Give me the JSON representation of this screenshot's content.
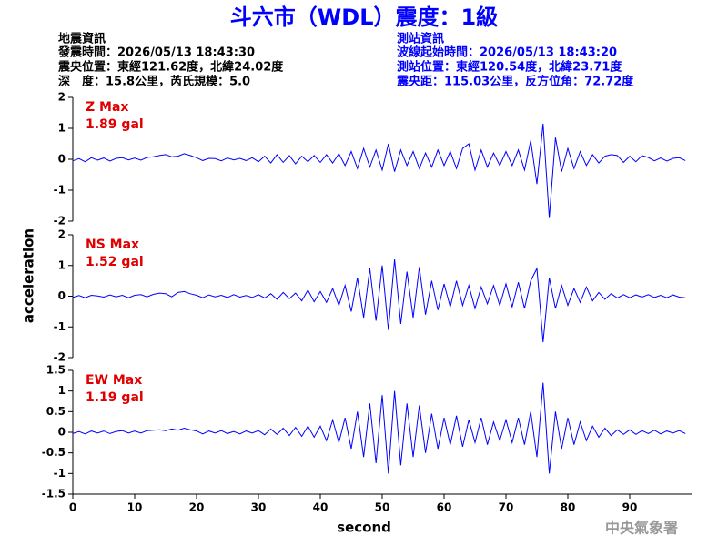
{
  "header": {
    "title": "斗六市（WDL）震度：1級",
    "left": [
      "地震資訊",
      "發震時間：2026/05/13 18:43:30",
      "震央位置：東經121.62度，北緯24.02度",
      "深　度：15.8公里，芮氏規模：5.0"
    ],
    "right": [
      "測站資訊",
      "波線起始時間：2026/05/13 18:43:20",
      "測站位置：東經120.54度，北緯23.71度",
      "震央距：115.03公里，反方位角：72.72度"
    ],
    "watermark": "中央氣象署",
    "y_label": "acceleration",
    "x_label": "second"
  },
  "chart_data": [
    {
      "type": "line",
      "label": "Z Max",
      "max_label": "1.89 gal",
      "color": "#0000ff",
      "xlim": [
        0,
        100
      ],
      "ylim": [
        -2,
        2
      ],
      "yticks": [
        -2,
        -1,
        0,
        1,
        2
      ],
      "x": [
        0,
        1,
        2,
        3,
        4,
        5,
        6,
        7,
        8,
        9,
        10,
        11,
        12,
        13,
        14,
        15,
        16,
        17,
        18,
        19,
        20,
        21,
        22,
        23,
        24,
        25,
        26,
        27,
        28,
        29,
        30,
        31,
        32,
        33,
        34,
        35,
        36,
        37,
        38,
        39,
        40,
        41,
        42,
        43,
        44,
        45,
        46,
        47,
        48,
        49,
        50,
        51,
        52,
        53,
        54,
        55,
        56,
        57,
        58,
        59,
        60,
        61,
        62,
        63,
        64,
        65,
        66,
        67,
        68,
        69,
        70,
        71,
        72,
        73,
        74,
        75,
        76,
        77,
        78,
        79,
        80,
        81,
        82,
        83,
        84,
        85,
        86,
        87,
        88,
        89,
        90,
        91,
        92,
        93,
        94,
        95,
        96,
        97,
        98,
        99
      ],
      "values": [
        -0.05,
        0.02,
        -0.08,
        0.05,
        -0.03,
        0.04,
        -0.06,
        0.03,
        0.05,
        -0.02,
        0.04,
        -0.03,
        0.06,
        0.08,
        0.12,
        0.15,
        0.08,
        0.1,
        0.18,
        0.12,
        0.05,
        -0.04,
        0.03,
        0.02,
        -0.05,
        0.04,
        -0.02,
        0.03,
        -0.04,
        0.05,
        -0.08,
        0.1,
        -0.12,
        0.15,
        -0.1,
        0.12,
        -0.15,
        0.1,
        -0.08,
        0.12,
        -0.1,
        0.15,
        -0.12,
        0.18,
        -0.2,
        0.25,
        -0.3,
        0.35,
        -0.25,
        0.3,
        -0.35,
        0.5,
        -0.4,
        0.3,
        -0.2,
        0.25,
        -0.3,
        0.2,
        -0.25,
        0.3,
        -0.2,
        0.25,
        -0.3,
        0.35,
        0.5,
        -0.35,
        0.3,
        -0.25,
        0.2,
        -0.2,
        0.25,
        -0.2,
        0.3,
        -0.35,
        0.6,
        -0.8,
        1.15,
        -1.9,
        0.7,
        -0.4,
        0.35,
        -0.3,
        0.25,
        -0.2,
        0.15,
        -0.12,
        0.1,
        0.15,
        0.12,
        -0.1,
        0.1,
        -0.08,
        0.12,
        0.06,
        -0.05,
        0.04,
        -0.06,
        0.03,
        0.05,
        -0.04
      ]
    },
    {
      "type": "line",
      "label": "NS Max",
      "max_label": "1.52 gal",
      "color": "#0000ff",
      "xlim": [
        0,
        100
      ],
      "ylim": [
        -2,
        2
      ],
      "yticks": [
        -2,
        -1,
        0,
        1,
        2
      ],
      "x": [
        0,
        1,
        2,
        3,
        4,
        5,
        6,
        7,
        8,
        9,
        10,
        11,
        12,
        13,
        14,
        15,
        16,
        17,
        18,
        19,
        20,
        21,
        22,
        23,
        24,
        25,
        26,
        27,
        28,
        29,
        30,
        31,
        32,
        33,
        34,
        35,
        36,
        37,
        38,
        39,
        40,
        41,
        42,
        43,
        44,
        45,
        46,
        47,
        48,
        49,
        50,
        51,
        52,
        53,
        54,
        55,
        56,
        57,
        58,
        59,
        60,
        61,
        62,
        63,
        64,
        65,
        66,
        67,
        68,
        69,
        70,
        71,
        72,
        73,
        74,
        75,
        76,
        77,
        78,
        79,
        80,
        81,
        82,
        83,
        84,
        85,
        86,
        87,
        88,
        89,
        90,
        91,
        92,
        93,
        94,
        95,
        96,
        97,
        98,
        99
      ],
      "values": [
        -0.04,
        0.02,
        -0.05,
        0.03,
        0.01,
        -0.03,
        0.04,
        -0.02,
        0.03,
        -0.05,
        0.03,
        0.05,
        -0.02,
        0.06,
        0.1,
        0.08,
        -0.02,
        0.12,
        0.15,
        0.08,
        0.03,
        -0.05,
        0.04,
        -0.02,
        0.03,
        -0.04,
        0.05,
        -0.03,
        0.02,
        -0.04,
        0.05,
        -0.06,
        0.08,
        -0.1,
        0.12,
        -0.08,
        0.1,
        -0.15,
        0.2,
        -0.18,
        0.15,
        -0.2,
        0.25,
        -0.3,
        0.35,
        -0.5,
        0.6,
        -0.7,
        0.9,
        -0.8,
        1.0,
        -1.1,
        1.2,
        -0.9,
        0.8,
        -0.7,
        0.95,
        -0.6,
        0.5,
        -0.45,
        0.4,
        -0.35,
        0.5,
        -0.3,
        0.35,
        -0.4,
        0.3,
        -0.25,
        0.35,
        -0.3,
        0.4,
        -0.35,
        0.45,
        -0.4,
        0.5,
        0.9,
        -1.5,
        0.6,
        -0.4,
        0.35,
        -0.3,
        0.25,
        -0.2,
        0.3,
        -0.15,
        0.12,
        -0.1,
        0.08,
        -0.06,
        0.05,
        -0.05,
        0.04,
        -0.03,
        0.05,
        -0.04,
        0.03,
        -0.05,
        0.04,
        -0.03,
        -0.05
      ]
    },
    {
      "type": "line",
      "label": "EW Max",
      "max_label": "1.19 gal",
      "color": "#0000ff",
      "xlim": [
        0,
        100
      ],
      "xticks": [
        0,
        10,
        20,
        30,
        40,
        50,
        60,
        70,
        80,
        90
      ],
      "ylim": [
        -1.5,
        1.5
      ],
      "yticks": [
        -1.5,
        -1,
        -0.5,
        0,
        0.5,
        1,
        1.5
      ],
      "x": [
        0,
        1,
        2,
        3,
        4,
        5,
        6,
        7,
        8,
        9,
        10,
        11,
        12,
        13,
        14,
        15,
        16,
        17,
        18,
        19,
        20,
        21,
        22,
        23,
        24,
        25,
        26,
        27,
        28,
        29,
        30,
        31,
        32,
        33,
        34,
        35,
        36,
        37,
        38,
        39,
        40,
        41,
        42,
        43,
        44,
        45,
        46,
        47,
        48,
        49,
        50,
        51,
        52,
        53,
        54,
        55,
        56,
        57,
        58,
        59,
        60,
        61,
        62,
        63,
        64,
        65,
        66,
        67,
        68,
        69,
        70,
        71,
        72,
        73,
        74,
        75,
        76,
        77,
        78,
        79,
        80,
        81,
        82,
        83,
        84,
        85,
        86,
        87,
        88,
        89,
        90,
        91,
        92,
        93,
        94,
        95,
        96,
        97,
        98,
        99
      ],
      "values": [
        -0.03,
        0.02,
        -0.04,
        0.03,
        -0.02,
        0.03,
        -0.03,
        0.02,
        0.04,
        -0.02,
        0.03,
        -0.02,
        0.04,
        0.05,
        0.06,
        0.04,
        0.08,
        0.05,
        0.1,
        0.06,
        0.03,
        -0.04,
        0.03,
        -0.02,
        0.04,
        -0.03,
        0.02,
        -0.04,
        0.03,
        -0.02,
        0.04,
        -0.06,
        0.08,
        -0.05,
        0.1,
        -0.08,
        0.12,
        -0.1,
        0.15,
        -0.12,
        0.15,
        -0.2,
        0.3,
        -0.25,
        0.35,
        -0.4,
        0.5,
        -0.6,
        0.7,
        -0.75,
        0.9,
        -1.0,
        1.0,
        -0.8,
        0.7,
        -0.6,
        0.65,
        -0.5,
        0.45,
        -0.4,
        0.35,
        -0.3,
        0.4,
        -0.35,
        0.3,
        -0.25,
        0.35,
        -0.3,
        0.25,
        -0.2,
        0.3,
        -0.25,
        0.35,
        -0.3,
        0.5,
        -0.6,
        1.2,
        -1.0,
        0.5,
        -0.4,
        0.35,
        -0.3,
        0.25,
        -0.2,
        0.15,
        -0.12,
        0.1,
        -0.08,
        0.06,
        -0.05,
        0.06,
        -0.05,
        0.04,
        -0.03,
        0.05,
        -0.04,
        0.03,
        -0.02,
        0.04,
        -0.03
      ]
    }
  ]
}
